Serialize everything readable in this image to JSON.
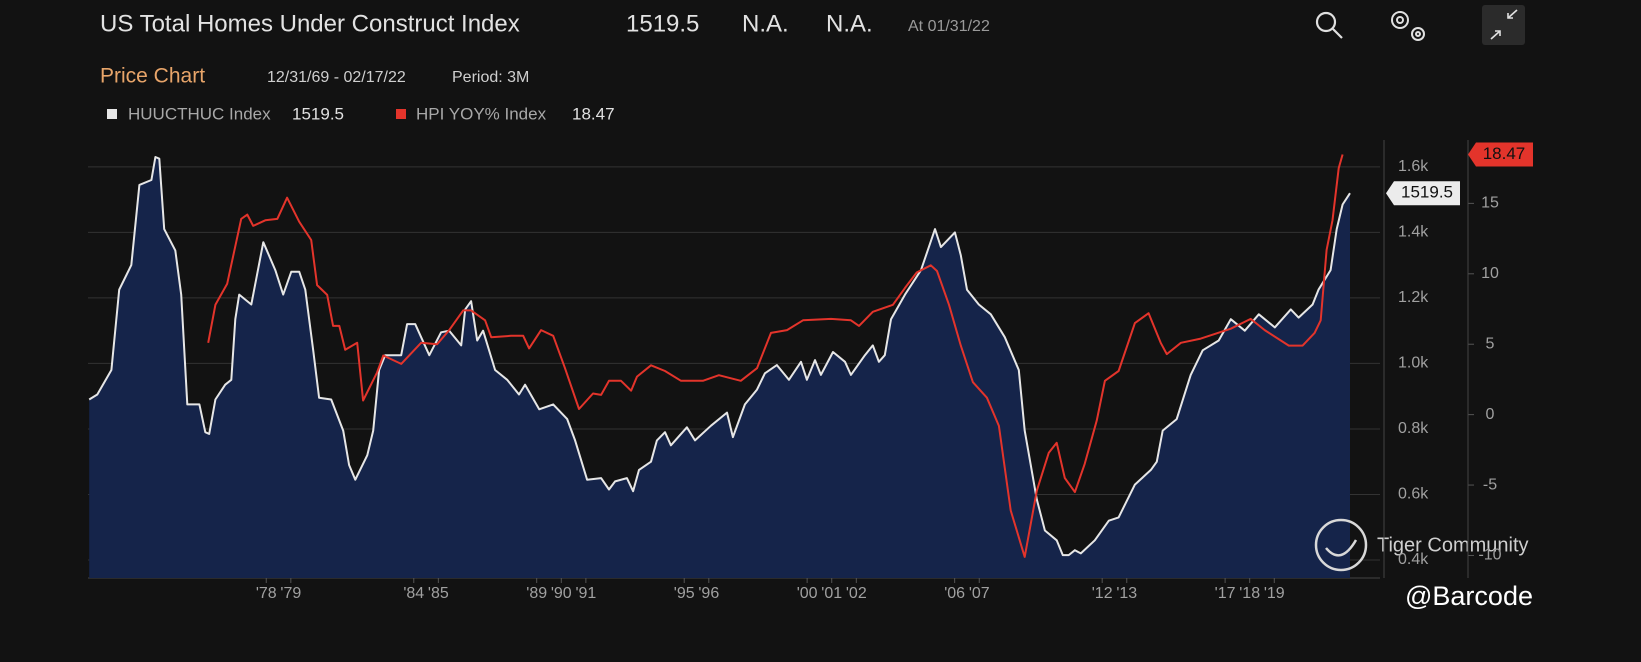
{
  "chart_data": {
    "type": "line",
    "title": "US Total Homes Under Construct Index",
    "change": "N.A.",
    "pct_change": "N.A.",
    "as_of": "At 01/31/22",
    "panel_title": "Price Chart",
    "date_range": "12/31/69 - 02/17/22",
    "period": "Period: 3M",
    "watermarks": [
      "Tiger Community",
      "@Barcode"
    ],
    "xlim": [
      1970.75,
      2023.3
    ],
    "xticks": [
      {
        "value": 1978,
        "label": "'78"
      },
      {
        "value": 1979,
        "label": "'79"
      },
      {
        "value": 1984,
        "label": "'84"
      },
      {
        "value": 1985,
        "label": "'85"
      },
      {
        "value": 1989,
        "label": "'89"
      },
      {
        "value": 1990,
        "label": "'90"
      },
      {
        "value": 1991,
        "label": "'91"
      },
      {
        "value": 1995,
        "label": "'95"
      },
      {
        "value": 1996,
        "label": "'96"
      },
      {
        "value": 2000,
        "label": "'00"
      },
      {
        "value": 2001,
        "label": "'01"
      },
      {
        "value": 2002,
        "label": "'02"
      },
      {
        "value": 2006,
        "label": "'06"
      },
      {
        "value": 2007,
        "label": "'07"
      },
      {
        "value": 2012,
        "label": "'12"
      },
      {
        "value": 2013,
        "label": "'13"
      },
      {
        "value": 2017,
        "label": "'17"
      },
      {
        "value": 2018,
        "label": "'18"
      },
      {
        "value": 2019,
        "label": "'19"
      }
    ],
    "ylim": [
      345,
      1682
    ],
    "yticks": [
      {
        "value": 400,
        "label": "0.4k"
      },
      {
        "value": 600,
        "label": "0.6k"
      },
      {
        "value": 800,
        "label": "0.8k"
      },
      {
        "value": 1000,
        "label": "1.0k"
      },
      {
        "value": 1200,
        "label": "1.2k"
      },
      {
        "value": 1400,
        "label": "1.4k"
      },
      {
        "value": 1600,
        "label": "1.6k"
      }
    ],
    "y2lim": [
      -11.6,
      19.5
    ],
    "y2ticks": [
      -10,
      -5,
      0,
      5,
      10,
      15
    ],
    "grid": true,
    "series": [
      {
        "name": "HUUCTHUC Index",
        "color": "#e6e6e6",
        "fill": "#15244a",
        "x": [
          1970.8,
          1971.13,
          1971.7,
          1972.02,
          1972.51,
          1972.84,
          1973.33,
          1973.49,
          1973.65,
          1973.85,
          1974.3,
          1974.54,
          1974.79,
          1975.28,
          1975.52,
          1975.68,
          1975.93,
          1976.33,
          1976.58,
          1976.74,
          1976.9,
          1977.39,
          1977.88,
          1978.37,
          1978.69,
          1979.02,
          1979.34,
          1979.59,
          1979.91,
          1980.15,
          1980.64,
          1981.13,
          1981.37,
          1981.62,
          1982.11,
          1982.35,
          1982.59,
          1982.84,
          1983.49,
          1983.73,
          1984.06,
          1984.63,
          1985.11,
          1985.44,
          1985.93,
          1986.09,
          1986.33,
          1986.58,
          1986.82,
          1987.31,
          1987.8,
          1988.28,
          1988.53,
          1989.1,
          1989.67,
          1990.24,
          1990.56,
          1991.05,
          1991.62,
          1991.94,
          1992.19,
          1992.67,
          1992.92,
          1993.16,
          1993.65,
          1993.89,
          1994.22,
          1994.46,
          1995.11,
          1995.44,
          1996.09,
          1996.74,
          1996.98,
          1997.47,
          1997.96,
          1998.28,
          1998.77,
          1999.26,
          1999.75,
          1999.99,
          2000.32,
          2000.56,
          2001.05,
          2001.54,
          2001.78,
          2002.35,
          2002.67,
          2002.92,
          2003.16,
          2003.41,
          2003.98,
          2004.63,
          2005.2,
          2005.44,
          2006.01,
          2006.25,
          2006.5,
          2006.98,
          2007.47,
          2008.04,
          2008.61,
          2008.85,
          2009.34,
          2009.67,
          2010.15,
          2010.4,
          2010.64,
          2010.89,
          2011.13,
          2011.7,
          2012.27,
          2012.67,
          2013.33,
          2013.98,
          2014.22,
          2014.46,
          2015.03,
          2015.6,
          2016.09,
          2016.74,
          2017.23,
          2017.8,
          2018.37,
          2019.02,
          2019.67,
          2019.99,
          2020.56,
          2020.8,
          2021.29,
          2021.54,
          2021.78,
          2022.08
        ],
        "values": [
          890,
          905,
          980,
          1225,
          1300,
          1545,
          1560,
          1630,
          1625,
          1410,
          1345,
          1210,
          875,
          875,
          790,
          785,
          890,
          935,
          950,
          1135,
          1210,
          1180,
          1370,
          1285,
          1210,
          1280,
          1280,
          1225,
          1040,
          895,
          890,
          795,
          690,
          645,
          720,
          795,
          980,
          1025,
          1025,
          1120,
          1120,
          1025,
          1095,
          1100,
          1055,
          1165,
          1190,
          1070,
          1100,
          980,
          950,
          905,
          935,
          860,
          875,
          830,
          765,
          645,
          650,
          615,
          640,
          650,
          610,
          675,
          700,
          765,
          790,
          750,
          805,
          765,
          810,
          850,
          775,
          875,
          920,
          970,
          995,
          950,
          1005,
          950,
          1010,
          965,
          1035,
          1005,
          965,
          1025,
          1055,
          1005,
          1025,
          1135,
          1210,
          1285,
          1410,
          1355,
          1400,
          1330,
          1225,
          1180,
          1150,
          1080,
          980,
          795,
          585,
          490,
          460,
          415,
          415,
          430,
          420,
          460,
          520,
          530,
          630,
          675,
          700,
          795,
          830,
          965,
          1040,
          1070,
          1135,
          1100,
          1150,
          1110,
          1165,
          1140,
          1180,
          1225,
          1285,
          1410,
          1485,
          1519.5
        ]
      },
      {
        "name": "HPI YOY% Index",
        "color": "#e3342b",
        "axis": "y2",
        "x": [
          1975.64,
          1975.93,
          1976.41,
          1976.98,
          1977.23,
          1977.47,
          1977.96,
          1978.45,
          1978.85,
          1979.34,
          1979.83,
          1980.07,
          1980.48,
          1980.72,
          1980.97,
          1981.21,
          1981.7,
          1981.94,
          1982.51,
          1982.76,
          1983.49,
          1984.3,
          1984.95,
          1985.44,
          1986.01,
          1986.33,
          1986.9,
          1987.15,
          1987.96,
          1988.45,
          1988.69,
          1989.18,
          1989.67,
          1990.15,
          1990.72,
          1991.29,
          1991.62,
          1991.94,
          1992.43,
          1992.84,
          1993.08,
          1993.65,
          1994.22,
          1994.87,
          1995.76,
          1996.41,
          1997.3,
          1997.96,
          1998.53,
          1999.18,
          1999.83,
          2000.97,
          2001.78,
          2002.11,
          2002.67,
          2003.49,
          2003.98,
          2004.46,
          2005.03,
          2005.28,
          2005.77,
          2006.25,
          2006.74,
          2007.31,
          2007.8,
          2008.28,
          2008.85,
          2009.34,
          2009.83,
          2010.15,
          2010.48,
          2010.89,
          2011.29,
          2011.78,
          2012.11,
          2012.67,
          2013.33,
          2013.89,
          2014.38,
          2014.63,
          2015.2,
          2016.01,
          2017.23,
          2018.04,
          2018.61,
          2019.59,
          2020.15,
          2020.64,
          2020.89,
          2021.13,
          2021.37,
          2021.62,
          2021.78
        ],
        "values": [
          5.1,
          7.8,
          9.3,
          13.9,
          14.2,
          13.4,
          13.8,
          13.9,
          15.4,
          13.7,
          12.4,
          9.2,
          8.5,
          6.3,
          6.3,
          4.6,
          5.1,
          1.0,
          3.0,
          4.2,
          3.6,
          5.1,
          5.0,
          6.0,
          7.4,
          7.4,
          6.7,
          5.5,
          5.6,
          5.6,
          4.7,
          6.0,
          5.6,
          3.3,
          0.4,
          1.5,
          1.4,
          2.4,
          2.4,
          1.7,
          2.7,
          3.5,
          3.1,
          2.4,
          2.4,
          2.8,
          2.4,
          3.3,
          5.8,
          6.0,
          6.7,
          6.8,
          6.7,
          6.3,
          7.3,
          7.8,
          9.0,
          10.1,
          10.6,
          10.2,
          7.8,
          4.9,
          2.3,
          1.2,
          -0.8,
          -6.8,
          -10.1,
          -5.4,
          -2.7,
          -2.0,
          -4.5,
          -5.5,
          -3.5,
          -0.4,
          2.4,
          3.1,
          6.5,
          7.2,
          5.1,
          4.3,
          5.1,
          5.4,
          6.1,
          6.8,
          6.0,
          4.9,
          4.9,
          5.8,
          6.7,
          11.7,
          13.8,
          17.5,
          18.47
        ]
      }
    ]
  }
}
